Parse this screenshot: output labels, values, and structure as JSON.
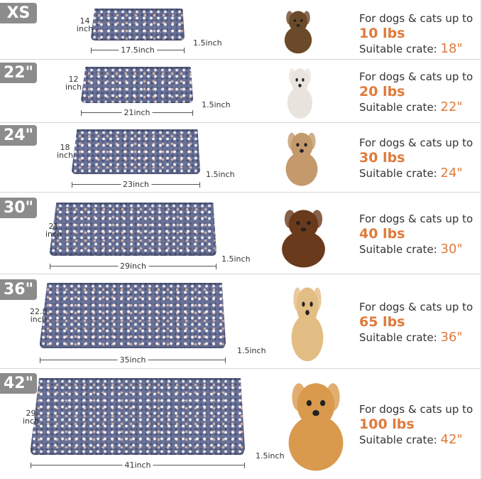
{
  "rows": [
    {
      "size": "XS",
      "depth": "14",
      "depth_unit": "inch",
      "width": "17.5inch",
      "height": "1.5inch",
      "line1": "For dogs & cats up to",
      "weight": "10 lbs",
      "crate_label": "Suitable crate: ",
      "crate": "18\"",
      "pet": "yorkshire-terrier"
    },
    {
      "size": "22\"",
      "depth": "12",
      "depth_unit": "inch",
      "width": "21inch",
      "height": "1.5inch",
      "line1": "For dogs & cats up to",
      "weight": "20 lbs",
      "crate_label": "Suitable crate: ",
      "crate": "22\"",
      "pet": "ragdoll-cat"
    },
    {
      "size": "24\"",
      "depth": "18",
      "depth_unit": "inch",
      "width": "23inch",
      "height": "1.5inch",
      "line1": "For dogs & cats up to",
      "weight": "30 lbs",
      "crate_label": "Suitable crate: ",
      "crate": "24\"",
      "pet": "french-bulldog"
    },
    {
      "size": "30\"",
      "depth": "21",
      "depth_unit": "inch",
      "width": "29inch",
      "height": "1.5inch",
      "line1": "For dogs & cats up to",
      "weight": "40 lbs",
      "crate_label": "Suitable crate: ",
      "crate": "30\"",
      "pet": "dachshund"
    },
    {
      "size": "36\"",
      "depth": "22.8",
      "depth_unit": "inch",
      "width": "35inch",
      "height": "1.5inch",
      "line1": "For dogs & cats up to",
      "weight": "65 lbs",
      "crate_label": "Suitable crate: ",
      "crate": "36\"",
      "pet": "golden-retriever-puppy"
    },
    {
      "size": "42\"",
      "depth": "29",
      "depth_unit": "inch",
      "width": "41inch",
      "height": "1.5inch",
      "line1": "For dogs & cats up to",
      "weight": "100 lbs",
      "crate_label": "Suitable crate: ",
      "crate": "42\"",
      "pet": "golden-retriever"
    }
  ],
  "colors": {
    "accent": "#e07a3a",
    "tag": "#8c8c8c",
    "mat": "#4a5278"
  }
}
